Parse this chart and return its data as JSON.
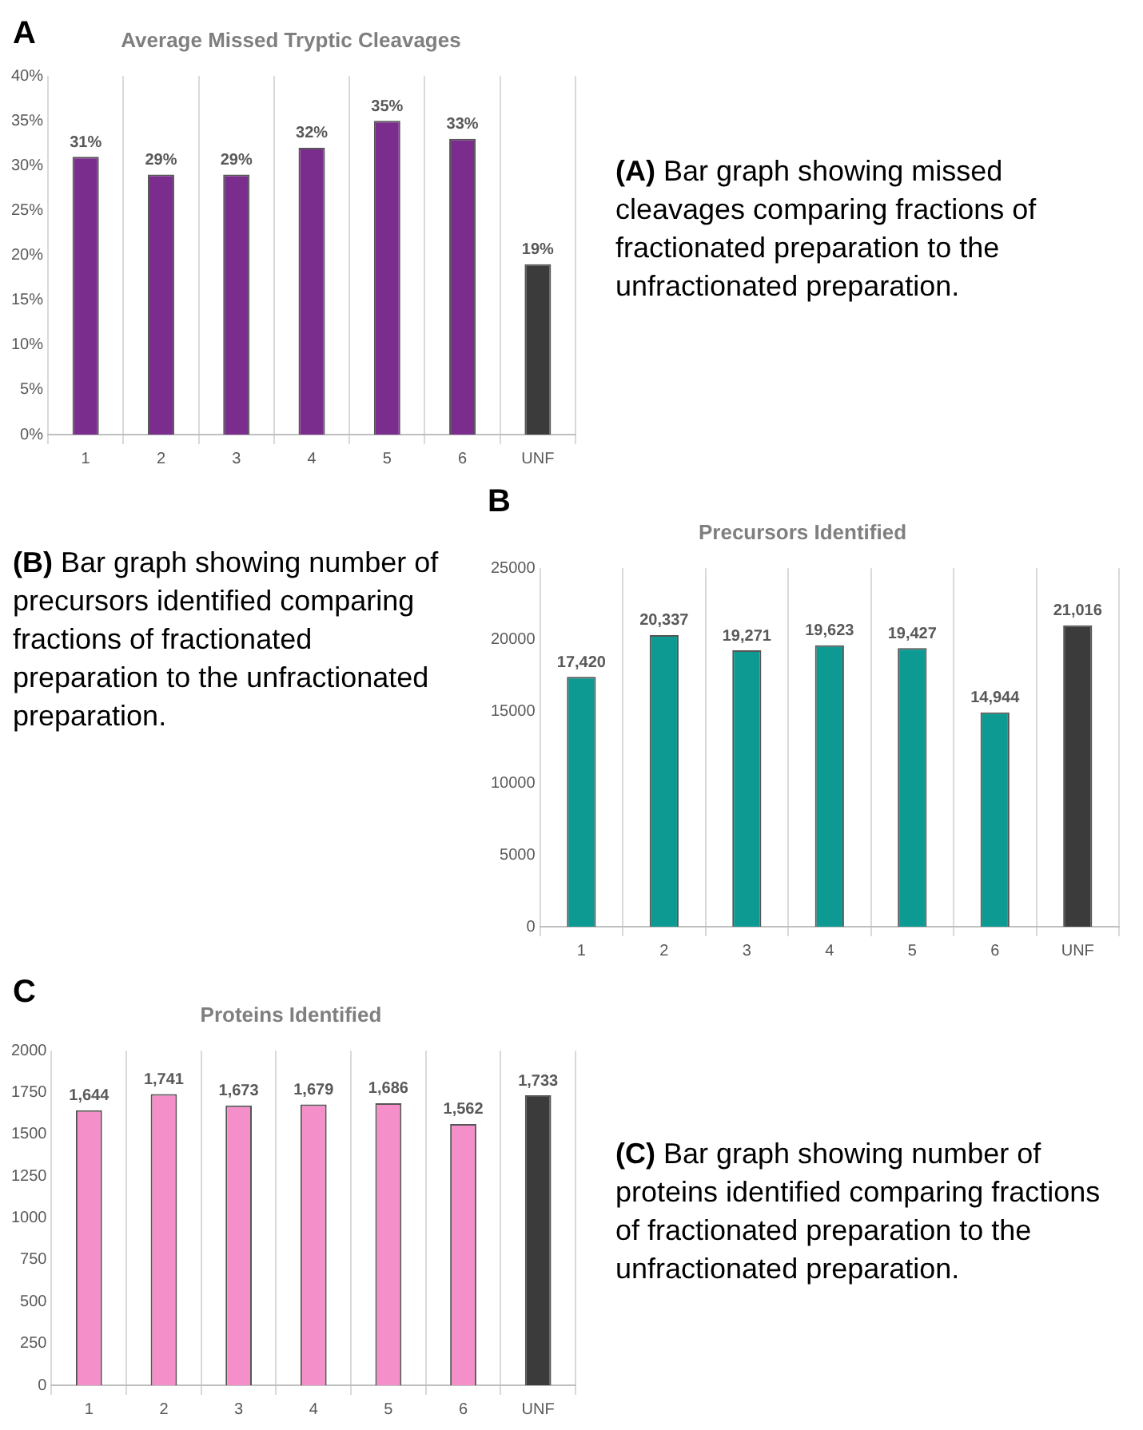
{
  "chart_data": [
    {
      "type": "bar",
      "title": "Average Missed Tryptic Cleavages",
      "categories": [
        "1",
        "2",
        "3",
        "4",
        "5",
        "6",
        "UNF"
      ],
      "values": [
        31,
        29,
        29,
        32,
        35,
        33,
        19
      ],
      "value_labels": [
        "31%",
        "29%",
        "29%",
        "32%",
        "35%",
        "33%",
        "19%"
      ],
      "colors": [
        "#7b2d8e",
        "#7b2d8e",
        "#7b2d8e",
        "#7b2d8e",
        "#7b2d8e",
        "#7b2d8e",
        "#3b3b3b"
      ],
      "ylim": [
        0,
        40
      ],
      "yticks": [
        {
          "value": 0,
          "label": "0%"
        },
        {
          "value": 5,
          "label": "5%"
        },
        {
          "value": 10,
          "label": "10%"
        },
        {
          "value": 15,
          "label": "15%"
        },
        {
          "value": 20,
          "label": "20%"
        },
        {
          "value": 25,
          "label": "25%"
        },
        {
          "value": 30,
          "label": "30%"
        },
        {
          "value": 35,
          "label": "35%"
        },
        {
          "value": 40,
          "label": "40%"
        }
      ],
      "grid": "x",
      "annotations": [
        "A",
        "(A) Bar graph showing missed cleavages comparing fractions of fractionated preparation to the unfractionated preparation."
      ]
    },
    {
      "type": "bar",
      "title": "Precursors Identified",
      "categories": [
        "1",
        "2",
        "3",
        "4",
        "5",
        "6",
        "UNF"
      ],
      "values": [
        17420,
        20337,
        19271,
        19623,
        19427,
        14944,
        21016
      ],
      "value_labels": [
        "17,420",
        "20,337",
        "19,271",
        "19,623",
        "19,427",
        "14,944",
        "21,016"
      ],
      "colors": [
        "#0c9a93",
        "#0c9a93",
        "#0c9a93",
        "#0c9a93",
        "#0c9a93",
        "#0c9a93",
        "#3b3b3b"
      ],
      "ylim": [
        0,
        25000
      ],
      "yticks": [
        0,
        5000,
        10000,
        15000,
        20000,
        25000
      ],
      "grid": "x",
      "annotations": [
        "B",
        "(B) Bar graph showing number of precursors identified comparing fractions of fractionated preparation to the unfractionated preparation."
      ]
    },
    {
      "type": "bar",
      "title": "Proteins Identified",
      "categories": [
        "1",
        "2",
        "3",
        "4",
        "5",
        "6",
        "UNF"
      ],
      "values": [
        1644,
        1741,
        1673,
        1679,
        1686,
        1562,
        1733
      ],
      "value_labels": [
        "1,644",
        "1,741",
        "1,673",
        "1,679",
        "1,686",
        "1,562",
        "1,733"
      ],
      "colors": [
        "#f58fc9",
        "#f58fc9",
        "#f58fc9",
        "#f58fc9",
        "#f58fc9",
        "#f58fc9",
        "#3b3b3b"
      ],
      "ylim": [
        0,
        2000
      ],
      "yticks": [
        0,
        250,
        500,
        750,
        1000,
        1250,
        1500,
        1750,
        2000
      ],
      "grid": "x",
      "annotations": [
        "C",
        "(C) Bar graph showing number of proteins identified comparing fractions of fractionated preparation to the unfractionated preparation."
      ]
    }
  ]
}
